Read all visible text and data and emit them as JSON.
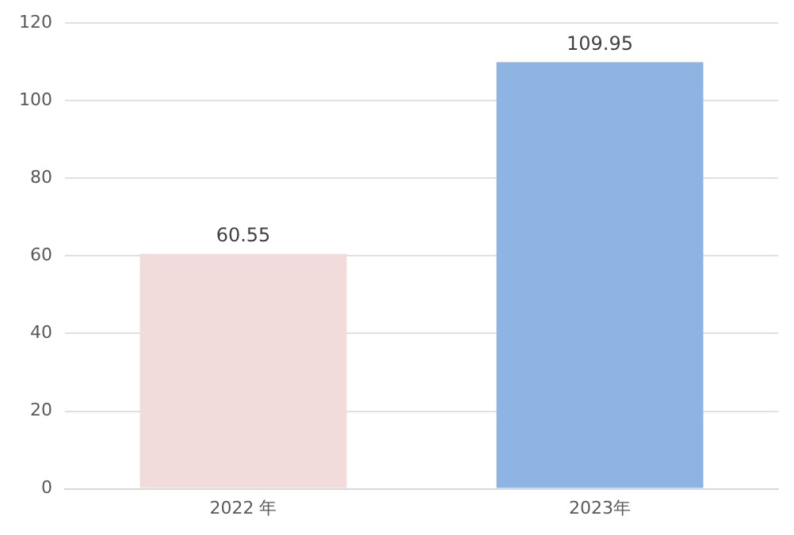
{
  "chart_data": {
    "type": "bar",
    "categories": [
      "2022 年",
      "2023年"
    ],
    "values": [
      60.55,
      109.95
    ],
    "colors": [
      "#f2dcdb",
      "#8eb4e3"
    ],
    "ylim": [
      0,
      120
    ],
    "yticks": [
      0,
      20,
      40,
      60,
      80,
      100,
      120
    ],
    "grid": "y",
    "data_labels": true,
    "legend": false
  }
}
